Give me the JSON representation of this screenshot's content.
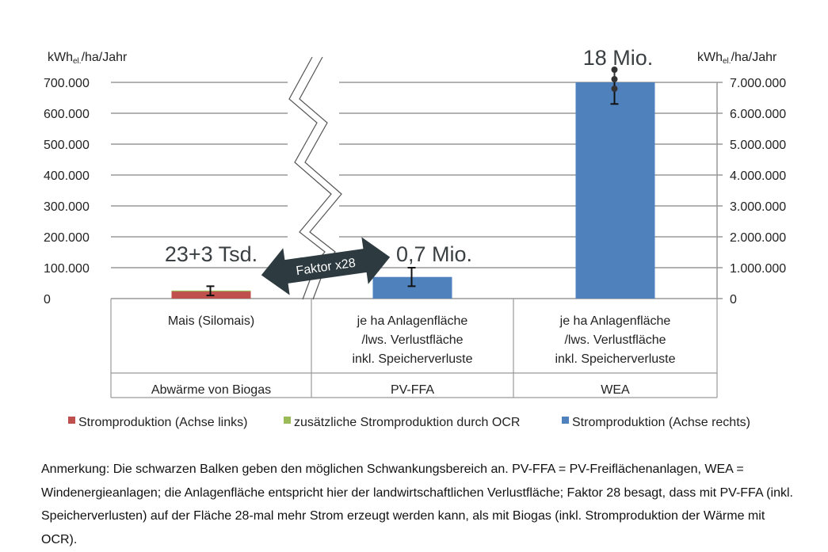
{
  "chart_data": {
    "type": "bar",
    "left_axis": {
      "label": "kWh",
      "label_sub": "el.",
      "label_suffix": "/ha/Jahr",
      "range": [
        0,
        700000
      ],
      "ticks": [
        "0",
        "100.000",
        "200.000",
        "300.000",
        "400.000",
        "500.000",
        "600.000",
        "700.000"
      ]
    },
    "right_axis": {
      "label": "kWh",
      "label_sub": "el.",
      "label_suffix": "/ha/Jahr",
      "range": [
        0,
        7000000
      ],
      "ticks": [
        "0",
        "1.000.000",
        "2.000.000",
        "3.000.000",
        "4.000.000",
        "5.000.000",
        "6.000.000",
        "7.000.000"
      ]
    },
    "axis_break": true,
    "grid": true,
    "categories": [
      {
        "label": "Mais (Silomais)",
        "group": "Abwärme von Biogas"
      },
      {
        "label": "je ha Anlagenfläche /lws. Verlustfläche inkl. Speicherverluste",
        "group": "PV-FFA"
      },
      {
        "label": "je ha Anlagenfläche /lws. Verlustfläche inkl. Speicherverluste",
        "group": "WEA"
      }
    ],
    "series": [
      {
        "name": "Stromproduktion (Achse links)",
        "color": "#c0504d",
        "axis": "left",
        "values": [
          23000,
          null,
          null
        ]
      },
      {
        "name": "zusätzliche Stromproduktion durch OCR",
        "color": "#9bbb59",
        "axis": "left",
        "values": [
          3000,
          null,
          null
        ],
        "stacked": true
      },
      {
        "name": "Stromproduktion (Achse rechts)",
        "color": "#4f81bd",
        "axis": "right",
        "values": [
          null,
          700000,
          7000000
        ]
      }
    ],
    "error_bars": [
      {
        "category": 0,
        "axis": "left",
        "low": 10000,
        "high": 40000
      },
      {
        "category": 1,
        "axis": "right",
        "low": 400000,
        "high": 1000000
      },
      {
        "category": 2,
        "axis": "right",
        "low": 6300000,
        "high": 7000000,
        "extends_beyond": true
      }
    ],
    "annotations": {
      "mais": "23+3 Tsd.",
      "pv": "0,7 Mio.",
      "wea": "18 Mio.",
      "arrow": "Faktor x28",
      "arrow_color": "#2d3a3f"
    },
    "legend_placement": "bottom"
  },
  "note": "Anmerkung: Die schwarzen Balken geben den möglichen Schwankungsbereich an. PV-FFA = PV-Freiflächenanlagen, WEA = Windenergieanlagen; die Anlagenfläche entspricht hier der landwirtschaftlichen Verlustfläche; Faktor 28 besagt, dass mit PV-FFA (inkl. Speicherverlusten) auf der Fläche 28-mal mehr Strom erzeugt werden kann, als mit Biogas (inkl. Stromproduktion der Wärme mit OCR)."
}
